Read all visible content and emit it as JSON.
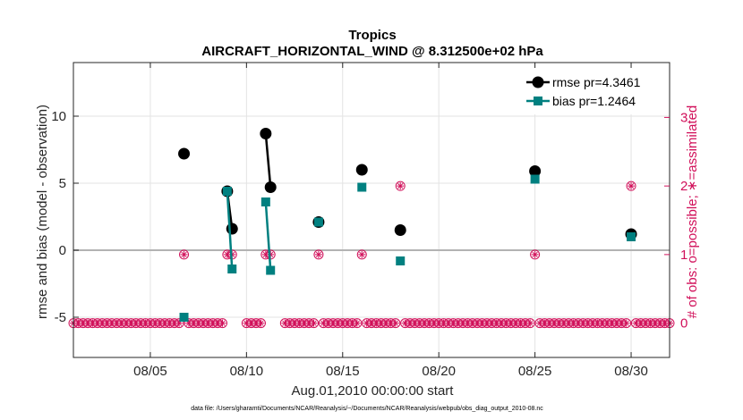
{
  "chart_data": {
    "type": "line",
    "title": "Tropics",
    "subtitle": "AIRCRAFT_HORIZONTAL_WIND @ 8.312500e+02 hPa",
    "xlabel": "Aug.01,2010 00:00:00 start",
    "ylabel": "rmse and bias (model - observation)",
    "y2label": "# of obs: o=possible; ∗=assimilated",
    "footnote": "data file: /Users/gharamti/Documents/NCAR/Reanalysis/~/Documents/NCAR/Reanalysis/webpub/obs_diag_output_2010-08.nc",
    "xlim": [
      1,
      32
    ],
    "ylim": [
      -8,
      14
    ],
    "y2lim": [
      -0.5,
      3.8
    ],
    "x_ticks": [
      5,
      10,
      15,
      20,
      25,
      30
    ],
    "x_tick_labels": [
      "08/05",
      "08/10",
      "08/15",
      "08/20",
      "08/25",
      "08/30"
    ],
    "y_ticks": [
      -5,
      0,
      5,
      10
    ],
    "y_tick_labels": [
      "-5",
      "0",
      "5",
      "10"
    ],
    "y2_ticks": [
      0,
      1,
      2,
      3
    ],
    "y2_tick_labels": [
      "0",
      "1",
      "2",
      "3"
    ],
    "grid": true,
    "zero_line": 0,
    "legend": [
      "rmse pr=4.3461",
      "bias pr=1.2464"
    ],
    "legend_position": "top-right",
    "series": [
      {
        "name": "rmse pr=4.3461",
        "color": "#000000",
        "marker": "circle",
        "segments": [
          [
            [
              6.75,
              7.2
            ]
          ],
          [
            [
              9.0,
              4.4
            ],
            [
              9.25,
              1.6
            ]
          ],
          [
            [
              11.0,
              8.7
            ],
            [
              11.25,
              4.7
            ]
          ],
          [
            [
              13.75,
              2.1
            ]
          ],
          [
            [
              16.0,
              6.0
            ]
          ],
          [
            [
              18.0,
              1.5
            ]
          ],
          [
            [
              25.0,
              5.9
            ]
          ],
          [
            [
              30.0,
              1.2
            ]
          ]
        ]
      },
      {
        "name": "bias pr=1.2464",
        "color": "#008080",
        "marker": "square",
        "segments": [
          [
            [
              6.75,
              -5.0
            ]
          ],
          [
            [
              9.0,
              4.4
            ],
            [
              9.25,
              -1.4
            ]
          ],
          [
            [
              11.0,
              3.6
            ],
            [
              11.25,
              -1.5
            ]
          ],
          [
            [
              13.75,
              2.1
            ]
          ],
          [
            [
              16.0,
              4.7
            ]
          ],
          [
            [
              18.0,
              -0.8
            ]
          ],
          [
            [
              25.0,
              5.3
            ]
          ],
          [
            [
              30.0,
              1.0
            ]
          ]
        ]
      }
    ],
    "obs_count_color": "#d1105a",
    "obs_count_step": 0.25,
    "obs_count_default": 0,
    "obs_count_gaps": [
      [
        9.5,
        9.75
      ],
      [
        11.5,
        11.75
      ]
    ],
    "obs_count_nonzero": [
      {
        "x": 6.75,
        "n": 1
      },
      {
        "x": 9.0,
        "n": 1
      },
      {
        "x": 9.25,
        "n": 1
      },
      {
        "x": 11.0,
        "n": 1
      },
      {
        "x": 11.25,
        "n": 1
      },
      {
        "x": 13.75,
        "n": 1
      },
      {
        "x": 16.0,
        "n": 1
      },
      {
        "x": 18.0,
        "n": 2
      },
      {
        "x": 25.0,
        "n": 1
      },
      {
        "x": 30.0,
        "n": 2
      }
    ]
  }
}
